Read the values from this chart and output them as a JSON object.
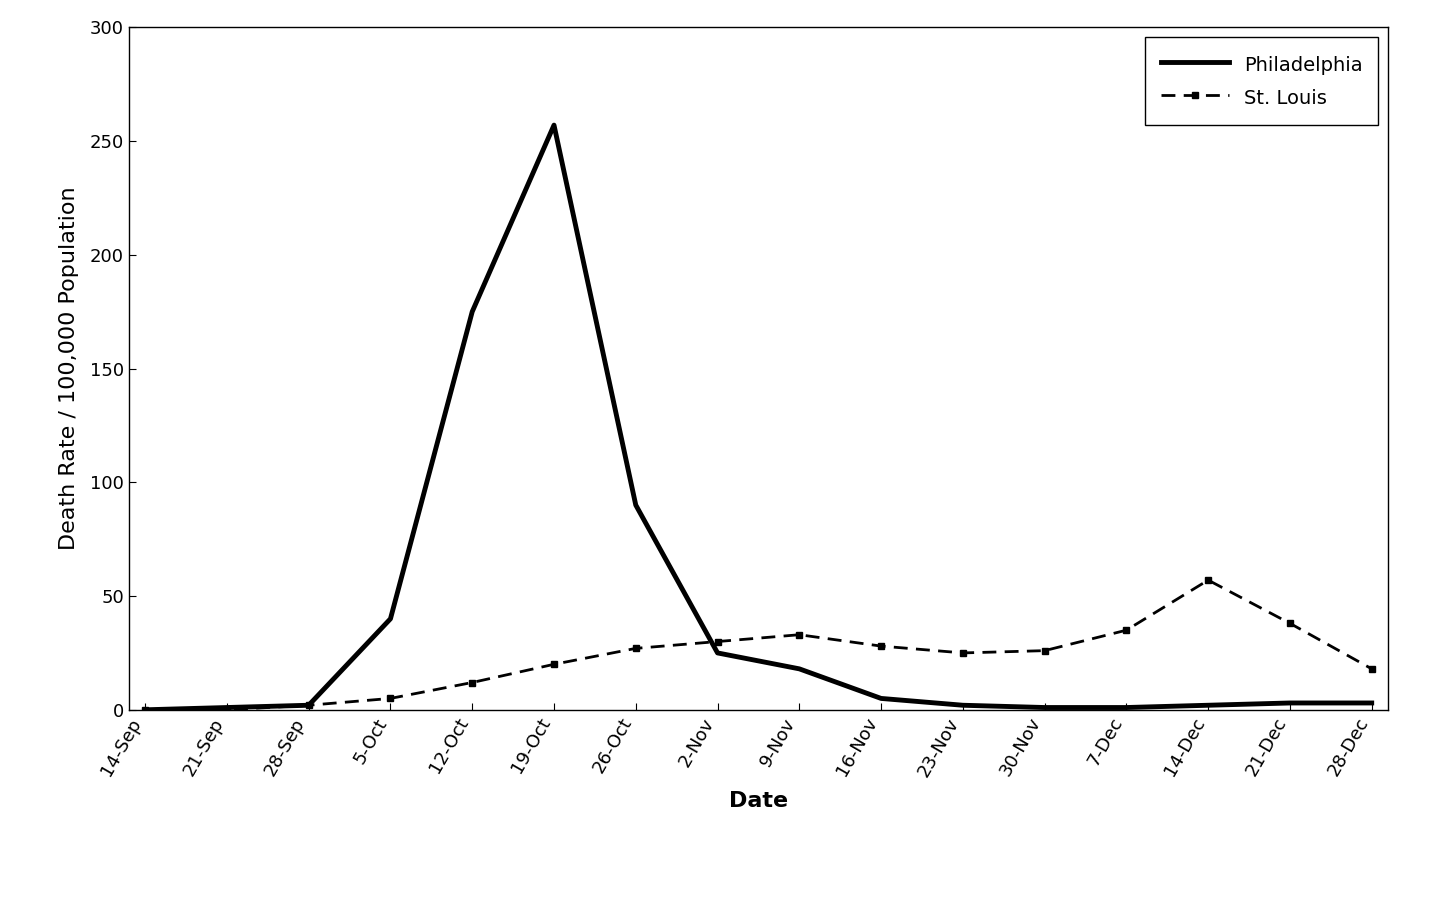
{
  "x_labels": [
    "14-Sep",
    "21-Sep",
    "28-Sep",
    "5-Oct",
    "12-Oct",
    "19-Oct",
    "26-Oct",
    "2-Nov",
    "9-Nov",
    "16-Nov",
    "23-Nov",
    "30-Nov",
    "7-Dec",
    "14-Dec",
    "21-Dec",
    "28-Dec"
  ],
  "philadelphia": [
    0,
    1,
    2,
    40,
    175,
    257,
    90,
    25,
    18,
    5,
    2,
    1,
    1,
    2,
    3,
    3
  ],
  "st_louis": [
    0,
    0,
    2,
    5,
    12,
    20,
    27,
    30,
    33,
    28,
    25,
    26,
    35,
    57,
    38,
    18
  ],
  "ylabel": "Death Rate / 100,000 Population",
  "xlabel": "Date",
  "ylim": [
    0,
    300
  ],
  "yticks": [
    0,
    50,
    100,
    150,
    200,
    250,
    300
  ],
  "legend_philadelphia": "Philadelphia",
  "legend_st_louis": "St. Louis",
  "line_color": "black",
  "background_color": "white",
  "label_fontsize": 16,
  "tick_fontsize": 13,
  "legend_fontsize": 14
}
